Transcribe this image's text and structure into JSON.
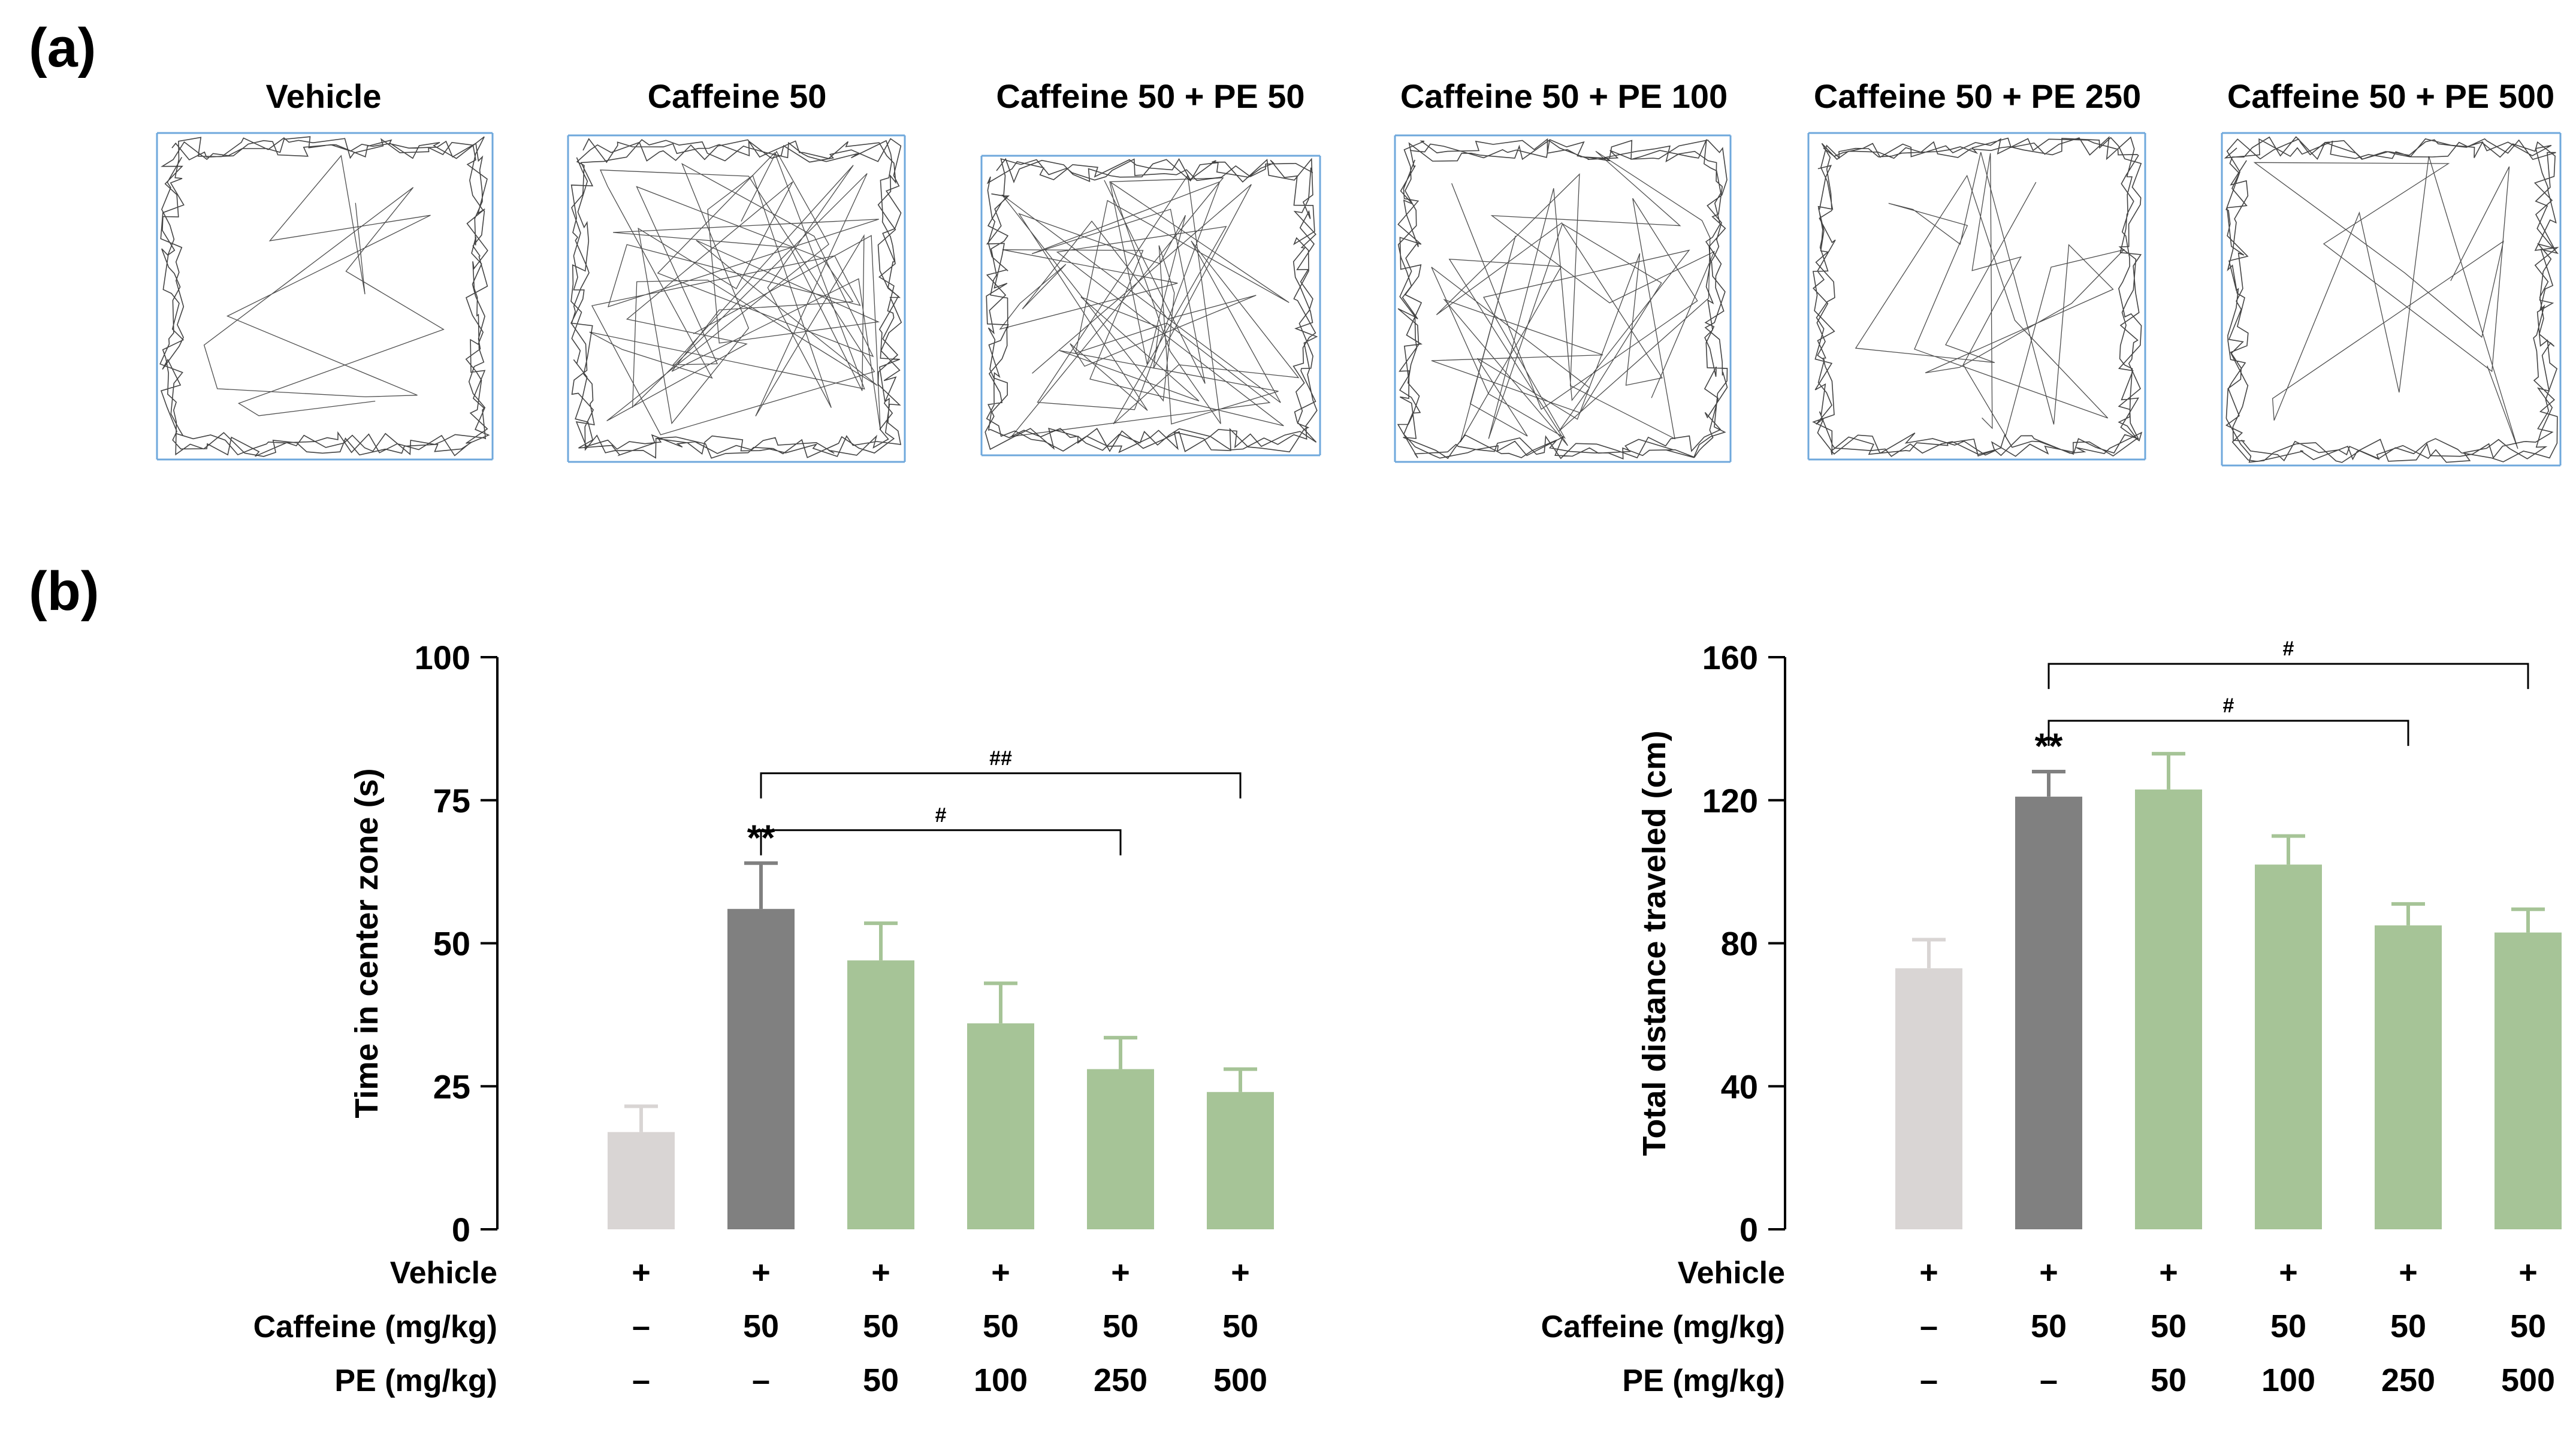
{
  "figure": {
    "panel_a_label": "(a)",
    "panel_b_label": "(b)"
  },
  "tracks": {
    "titles": [
      "Vehicle",
      "Caffeine 50",
      "Caffeine 50 + PE 50",
      "Caffeine 50 + PE 100",
      "Caffeine 50 + PE 250",
      "Caffeine 50 + PE 500"
    ],
    "box_color": "#6fa8dc",
    "path_color": "#222222"
  },
  "colors": {
    "vehicle": "#d9d5d4",
    "caffeine": "#808080",
    "pe": "#a6c497"
  },
  "chart_data": [
    {
      "type": "bar",
      "title": "",
      "ylabel": "Time in center zone (s)",
      "xlabel": "",
      "ylim": [
        0,
        100
      ],
      "yticks": [
        0,
        25,
        50,
        75,
        100
      ],
      "categories": [
        "Vehicle",
        "Caffeine 50",
        "Caffeine 50 + PE 50",
        "Caffeine 50 + PE 100",
        "Caffeine 50 + PE 250",
        "Caffeine 50 + PE 500"
      ],
      "values": [
        17,
        56,
        47,
        36,
        28,
        24
      ],
      "errors": [
        4.5,
        8,
        6.5,
        7,
        5.5,
        4
      ],
      "bar_colors": [
        "#d9d5d4",
        "#808080",
        "#a6c497",
        "#a6c497",
        "#a6c497",
        "#a6c497"
      ],
      "annotations": [
        {
          "bar": 1,
          "text": "**"
        }
      ],
      "brackets": [
        {
          "from": 1,
          "to": 5,
          "text": "##",
          "level": 1
        },
        {
          "from": 1,
          "to": 4,
          "text": "#",
          "level": 0
        }
      ],
      "treatment_table": {
        "rows": [
          {
            "label": "Vehicle",
            "values": [
              "+",
              "+",
              "+",
              "+",
              "+",
              "+"
            ]
          },
          {
            "label": "Caffeine (mg/kg)",
            "values": [
              "–",
              "50",
              "50",
              "50",
              "50",
              "50"
            ]
          },
          {
            "label": "PE (mg/kg)",
            "values": [
              "–",
              "–",
              "50",
              "100",
              "250",
              "500"
            ]
          }
        ]
      }
    },
    {
      "type": "bar",
      "title": "",
      "ylabel": "Total distance traveled (cm)",
      "xlabel": "",
      "ylim": [
        0,
        160
      ],
      "yticks": [
        0,
        40,
        80,
        120,
        160
      ],
      "categories": [
        "Vehicle",
        "Caffeine 50",
        "Caffeine 50 + PE 50",
        "Caffeine 50 + PE 100",
        "Caffeine 50 + PE 250",
        "Caffeine 50 + PE 500"
      ],
      "values": [
        73,
        121,
        123,
        102,
        85,
        83
      ],
      "errors": [
        8,
        7,
        10,
        8,
        6,
        6.5
      ],
      "bar_colors": [
        "#d9d5d4",
        "#808080",
        "#a6c497",
        "#a6c497",
        "#a6c497",
        "#a6c497"
      ],
      "annotations": [
        {
          "bar": 1,
          "text": "**"
        }
      ],
      "brackets": [
        {
          "from": 1,
          "to": 5,
          "text": "#",
          "level": 1
        },
        {
          "from": 1,
          "to": 4,
          "text": "#",
          "level": 0
        }
      ],
      "treatment_table": {
        "rows": [
          {
            "label": "Vehicle",
            "values": [
              "+",
              "+",
              "+",
              "+",
              "+",
              "+"
            ]
          },
          {
            "label": "Caffeine (mg/kg)",
            "values": [
              "–",
              "50",
              "50",
              "50",
              "50",
              "50"
            ]
          },
          {
            "label": "PE (mg/kg)",
            "values": [
              "–",
              "–",
              "50",
              "100",
              "250",
              "500"
            ]
          }
        ]
      }
    }
  ]
}
